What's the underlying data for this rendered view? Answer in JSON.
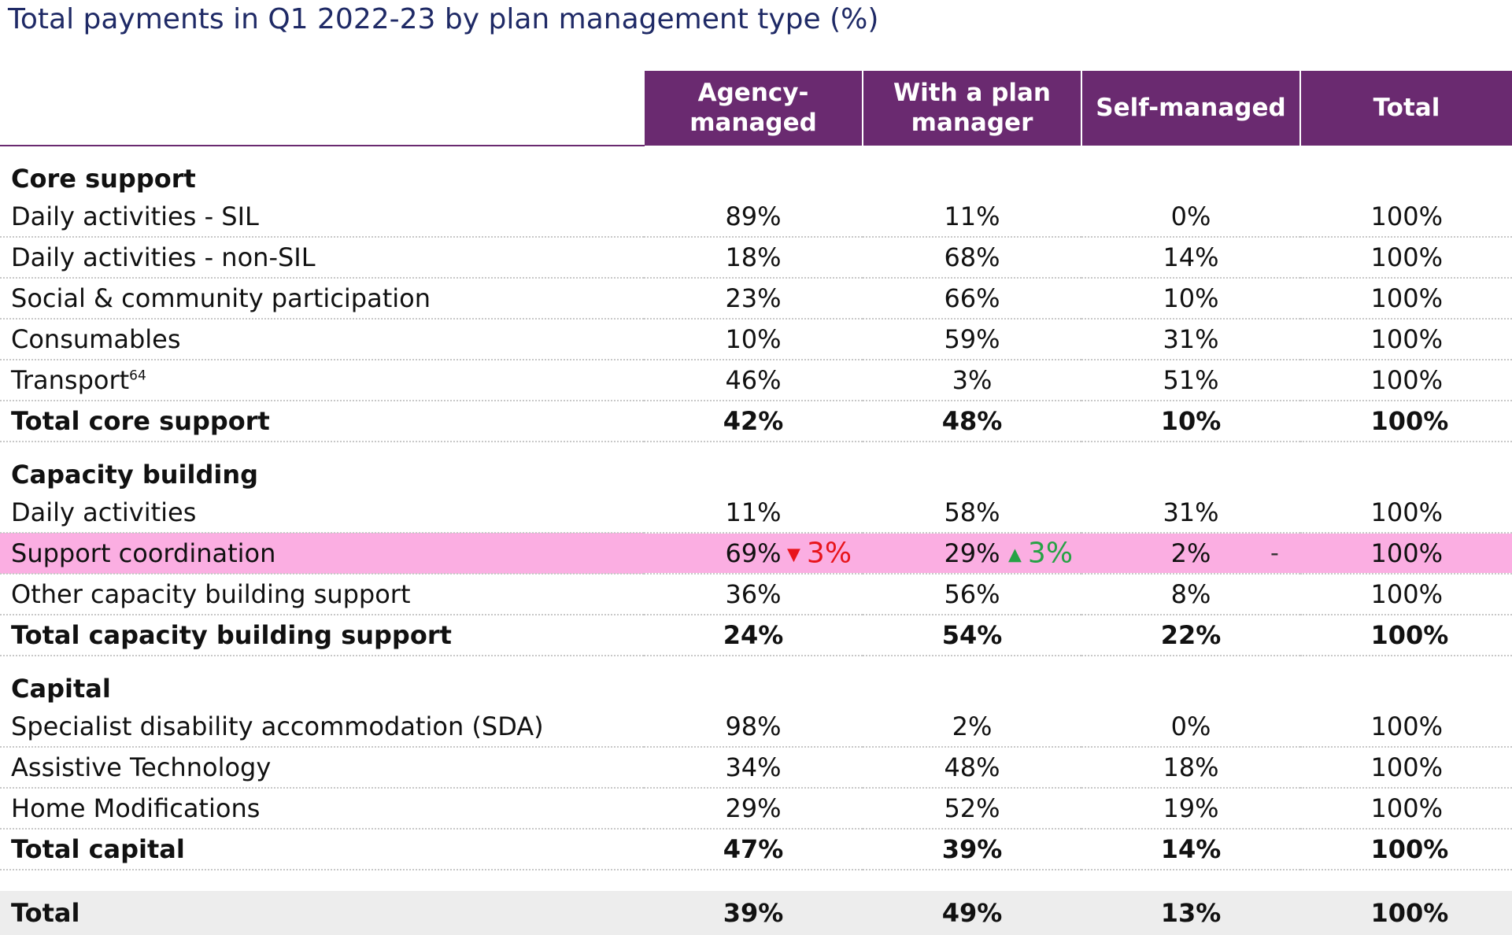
{
  "title": "Total payments in Q1 2022-23 by plan management type (%)",
  "columns": [
    "Agency-managed",
    "With a plan manager",
    "Self-managed",
    "Total"
  ],
  "column_lines": [
    [
      "Agency-",
      "managed"
    ],
    [
      "With a plan",
      "manager"
    ],
    [
      "Self-managed"
    ],
    [
      "Total"
    ]
  ],
  "colors": {
    "header_bg": "#6a2a70",
    "highlight": "#fbaee2",
    "down": "#e8141b",
    "up": "#26a245",
    "title": "#1f2a66"
  },
  "sections": [
    {
      "name": "Core support",
      "rows": [
        {
          "label": "Daily activities - SIL",
          "values": [
            "89%",
            "11%",
            "0%",
            "100%"
          ]
        },
        {
          "label": "Daily activities - non-SIL",
          "values": [
            "18%",
            "68%",
            "14%",
            "100%"
          ]
        },
        {
          "label": "Social & community participation",
          "values": [
            "23%",
            "66%",
            "10%",
            "100%"
          ]
        },
        {
          "label": "Consumables",
          "values": [
            "10%",
            "59%",
            "31%",
            "100%"
          ]
        },
        {
          "label": "Transport",
          "footnote": "64",
          "values": [
            "46%",
            "3%",
            "51%",
            "100%"
          ]
        }
      ],
      "total": {
        "label": "Total core support",
        "values": [
          "42%",
          "48%",
          "10%",
          "100%"
        ]
      }
    },
    {
      "name": "Capacity building",
      "rows": [
        {
          "label": "Daily activities",
          "values": [
            "11%",
            "58%",
            "31%",
            "100%"
          ]
        },
        {
          "label": "Support coordination",
          "highlight": true,
          "values": [
            "69%",
            "29%",
            "2%",
            "100%"
          ],
          "changes": [
            {
              "direction": "down",
              "arrow": "▼",
              "text": "3%"
            },
            {
              "direction": "up",
              "arrow": "▲",
              "text": "3%"
            },
            {
              "direction": "flat",
              "arrow": "",
              "text": "-"
            }
          ]
        },
        {
          "label": "Other capacity building support",
          "values": [
            "36%",
            "56%",
            "8%",
            "100%"
          ]
        }
      ],
      "total": {
        "label": "Total capacity building support",
        "values": [
          "24%",
          "54%",
          "22%",
          "100%"
        ]
      }
    },
    {
      "name": "Capital",
      "rows": [
        {
          "label": "Specialist disability accommodation (SDA)",
          "values": [
            "98%",
            "2%",
            "0%",
            "100%"
          ]
        },
        {
          "label": "Assistive Technology",
          "values": [
            "34%",
            "48%",
            "18%",
            "100%"
          ]
        },
        {
          "label": "Home Modifications",
          "values": [
            "29%",
            "52%",
            "19%",
            "100%"
          ]
        }
      ],
      "total": {
        "label": "Total capital",
        "values": [
          "47%",
          "39%",
          "14%",
          "100%"
        ]
      }
    }
  ],
  "grand_total": {
    "label": "Total",
    "values": [
      "39%",
      "49%",
      "13%",
      "100%"
    ]
  }
}
